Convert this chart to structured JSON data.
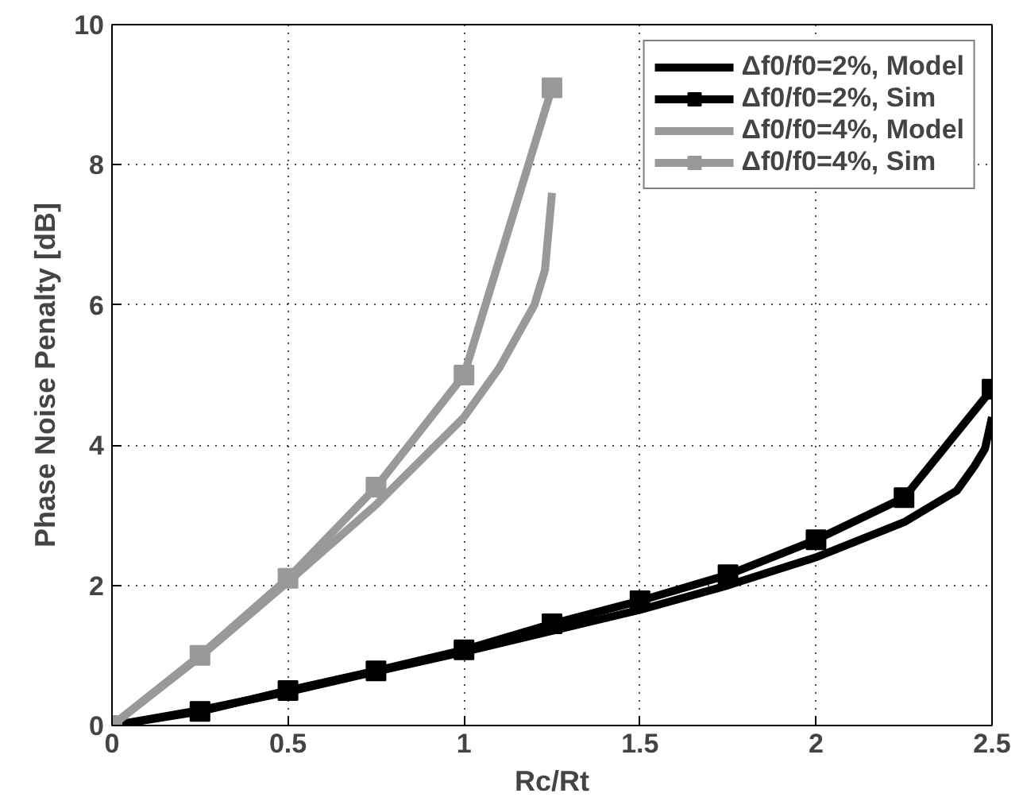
{
  "chart_data": {
    "type": "line",
    "xlabel": "Rc/Rt",
    "ylabel": "Phase Noise Penalty [dB]",
    "xlim": [
      0,
      2.5
    ],
    "ylim": [
      0,
      10
    ],
    "xticks": [
      0,
      0.5,
      1,
      1.5,
      2,
      2.5
    ],
    "yticks": [
      0,
      2,
      4,
      6,
      8,
      10
    ],
    "grid": true,
    "legend": "top right",
    "series": [
      {
        "name": "Δf0/f0=2%, Model",
        "color": "#000000",
        "marker": "none",
        "x": [
          0,
          0.25,
          0.5,
          0.75,
          1,
          1.25,
          1.5,
          1.75,
          2,
          2.25,
          2.4,
          2.45,
          2.48,
          2.5
        ],
        "values": [
          0,
          0.22,
          0.48,
          0.77,
          1.05,
          1.35,
          1.65,
          2.0,
          2.4,
          2.9,
          3.35,
          3.7,
          3.95,
          4.4
        ]
      },
      {
        "name": "Δf0/f0=2%, Sim",
        "color": "#000000",
        "marker": "square",
        "x": [
          0,
          0.25,
          0.5,
          0.75,
          1,
          1.25,
          1.5,
          1.75,
          2,
          2.25,
          2.5
        ],
        "values": [
          0,
          0.2,
          0.5,
          0.78,
          1.08,
          1.45,
          1.78,
          2.15,
          2.65,
          3.25,
          4.8
        ]
      },
      {
        "name": "Δf0/f0=4%, Model",
        "color": "#999999",
        "marker": "none",
        "x": [
          0,
          0.25,
          0.5,
          0.75,
          1,
          1.1,
          1.2,
          1.23,
          1.25
        ],
        "values": [
          0,
          0.98,
          2.05,
          3.15,
          4.4,
          5.1,
          6.0,
          6.5,
          7.6
        ]
      },
      {
        "name": "Δf0/f0=4%, Sim",
        "color": "#999999",
        "marker": "square",
        "x": [
          0,
          0.25,
          0.5,
          0.75,
          1,
          1.25
        ],
        "values": [
          0,
          1.0,
          2.1,
          3.4,
          5.0,
          9.1
        ]
      }
    ]
  }
}
